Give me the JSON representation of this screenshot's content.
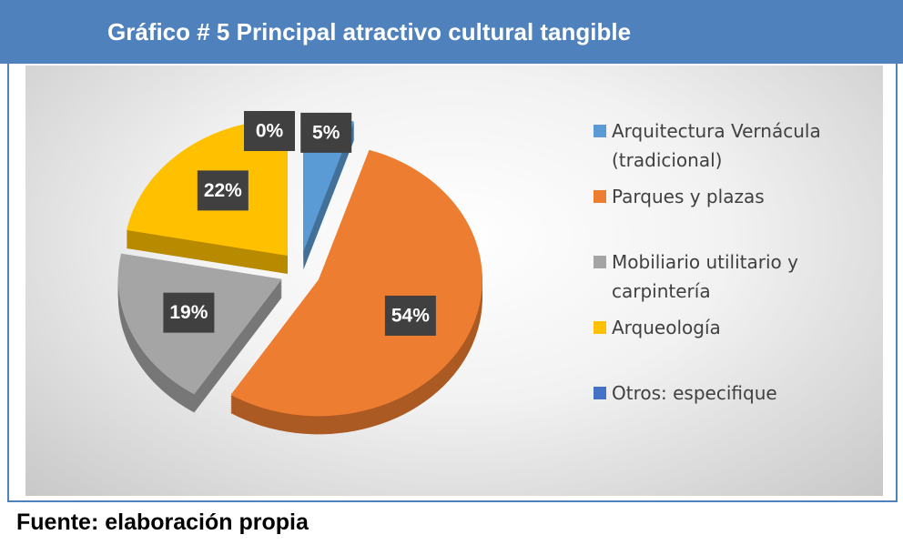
{
  "chart_data": {
    "type": "pie",
    "title": "Gráfico # 5  Principal atractivo cultural tangible",
    "source": "Fuente:  elaboración propia",
    "categories": [
      "Arquitectura Vernácula (tradicional)",
      "Parques y plazas",
      "Mobiliario utilitario y carpintería",
      "Arqueología",
      "Otros: especifique"
    ],
    "values": [
      5,
      54,
      19,
      22,
      0
    ],
    "value_labels": [
      "5%",
      "54%",
      "19%",
      "22%",
      "0%"
    ],
    "colors": [
      "#5b9bd5",
      "#ed7d31",
      "#a5a5a5",
      "#ffc000",
      "#4472c4"
    ],
    "legend": "right"
  }
}
